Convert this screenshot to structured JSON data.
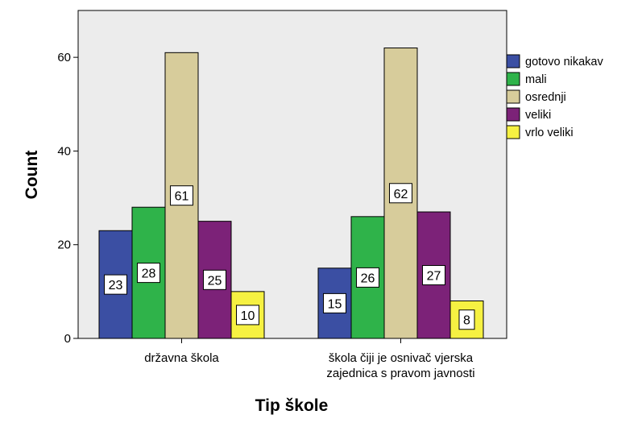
{
  "chart_data": {
    "type": "bar",
    "title": "",
    "xlabel": "Tip škole",
    "ylabel": "Count",
    "ylim": [
      0,
      70
    ],
    "yticks": [
      0,
      20,
      40,
      60
    ],
    "grid": false,
    "legend_position": "right",
    "categories": [
      [
        "državna škola"
      ],
      [
        "škola čiji je osnivač vjerska",
        "zajednica s pravom javnosti"
      ]
    ],
    "series": [
      {
        "name": "gotovo nikakav",
        "color": "#3b4fa3",
        "values": [
          23,
          15
        ]
      },
      {
        "name": "mali",
        "color": "#2fb34a",
        "values": [
          28,
          26
        ]
      },
      {
        "name": "osrednji",
        "color": "#d7cc9b",
        "values": [
          61,
          62
        ]
      },
      {
        "name": "veliki",
        "color": "#7c2278",
        "values": [
          25,
          27
        ]
      },
      {
        "name": "vrlo veliki",
        "color": "#f6f142",
        "values": [
          10,
          8
        ]
      }
    ],
    "data_labels": [
      [
        "23",
        "28",
        "61",
        "25",
        "10"
      ],
      [
        "15",
        "26",
        "62",
        "27",
        "8"
      ]
    ]
  }
}
